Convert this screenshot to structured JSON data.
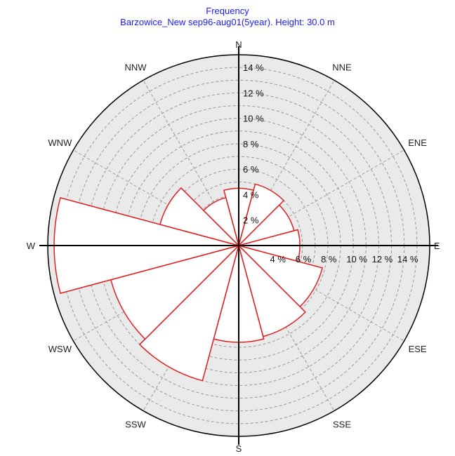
{
  "chart_data": {
    "type": "wind-rose",
    "title": "Frequency",
    "subtitle": "Barzowice_New sep96-aug01(5year). Height: 30.0 m",
    "sectors": [
      "N",
      "NNE",
      "ENE",
      "E",
      "ESE",
      "SSE",
      "S",
      "SSW",
      "WSW",
      "W",
      "WNW",
      "NNW"
    ],
    "sector_labels": [
      "N",
      "NNE",
      "ENE",
      "E",
      "ESE",
      "SSE",
      "S",
      "SSW",
      "WSW",
      "W",
      "WNW",
      "NNW"
    ],
    "values": [
      4.5,
      5.0,
      4.5,
      4.8,
      6.8,
      7.4,
      7.6,
      11.0,
      10.4,
      14.5,
      6.4,
      3.9
    ],
    "units": "%",
    "rmax": 15,
    "grid_rings": [
      1,
      2,
      3,
      4,
      5,
      6,
      7,
      8,
      9,
      10,
      11,
      12,
      13,
      14,
      15
    ],
    "tick_labels_n": [
      "2 %",
      "4 %",
      "6 %",
      "8 %",
      "10 %",
      "12 %",
      "14 %"
    ],
    "tick_labels_e": [
      "4 %",
      "6 %",
      "8 %",
      "10 %",
      "12 %",
      "14 %"
    ],
    "colors": {
      "sector_fill": "#ffffff",
      "sector_stroke": "#e02020",
      "grid": "#999999",
      "plot_bg": "#eaeaea",
      "title": "#1a1aff"
    }
  }
}
